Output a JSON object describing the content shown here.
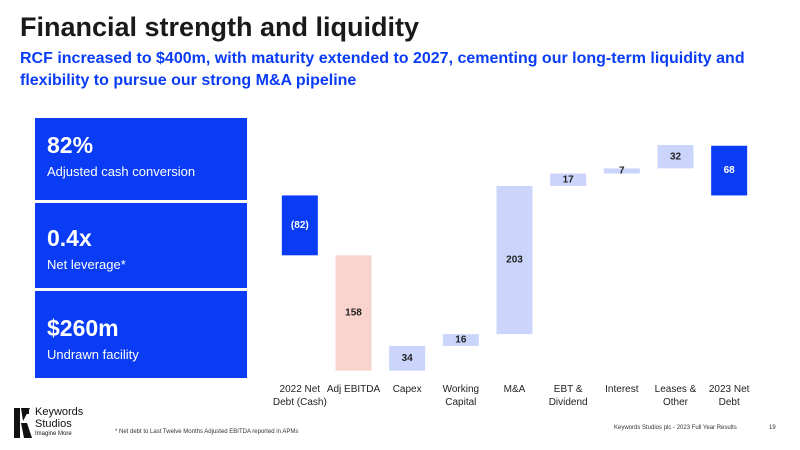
{
  "title": "Financial strength and liquidity",
  "subtitle": "RCF increased to $400m, with maturity extended to 2027, cementing our long-term liquidity and flexibility to pursue our strong M&A pipeline",
  "kpis": [
    {
      "value": "82%",
      "label": "Adjusted cash conversion"
    },
    {
      "value": "0.4x",
      "label": "Net leverage*"
    },
    {
      "value": "$260m",
      "label": "Undrawn facility"
    }
  ],
  "logo": {
    "name_line1": "Keywords",
    "name_line2": "Studios",
    "tagline": "Imagine More"
  },
  "footnote": "* Net debt to Last Twelve Months Adjusted EBITDA reported in APMs",
  "footer": "Keywords Studios plc - 2023 Full Year Results",
  "page_number": "19",
  "chart_data": {
    "type": "waterfall",
    "categories": [
      "2022 Net Debt (Cash)",
      "Adj EBITDA",
      "Capex",
      "Working Capital",
      "M&A",
      "EBT & Dividend",
      "Interest",
      "Leases & Other",
      "2023 Net Debt"
    ],
    "values": [
      -82,
      158,
      34,
      16,
      203,
      17,
      7,
      32,
      68
    ],
    "value_labels": [
      "(82)",
      "158",
      "34",
      "16",
      "203",
      "17",
      "7",
      "32",
      "68"
    ],
    "measure": [
      "total",
      "decrease",
      "increase",
      "increase",
      "increase",
      "increase",
      "increase",
      "increase",
      "total"
    ],
    "colors": {
      "total": "#0a3cf5",
      "decrease": "#f9d3cd",
      "increase": "#cbd5fb"
    },
    "ylim": [
      -250,
      80
    ]
  }
}
